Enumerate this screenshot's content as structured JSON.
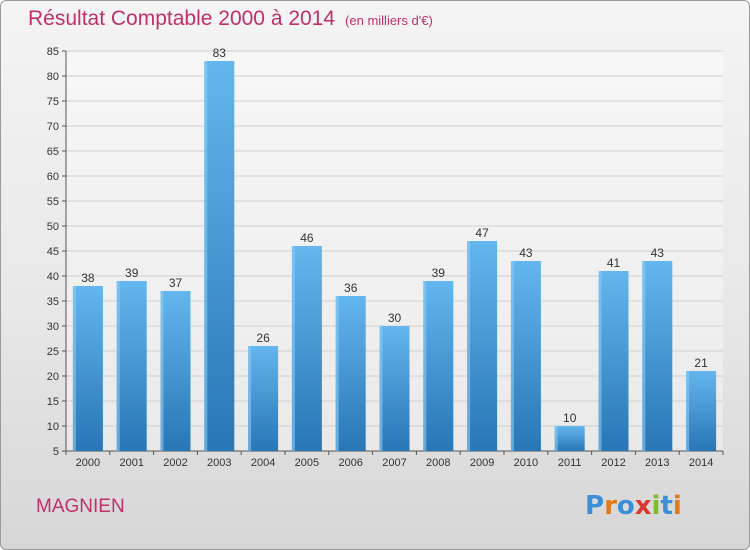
{
  "header": {
    "title": "Résultat Comptable 2000 à 2014",
    "unit": "(en milliers d'€)"
  },
  "footer": {
    "town": "MAGNIEN",
    "logo": "Proxiti"
  },
  "colors": {
    "title": "#c0306a",
    "bar_light": "#62b4ec",
    "bar_dark": "#2a78b8",
    "grid": "#d0d0d0",
    "logo_letters": [
      "#3a8fd6",
      "#e07a1e",
      "#3a8fd6",
      "#d8392f",
      "#7bbf2a",
      "#3a8fd6",
      "#e07a1e"
    ]
  },
  "chart_data": {
    "type": "bar",
    "title": "Résultat Comptable 2000 à 2014",
    "ylabel": "(en milliers d'€)",
    "xlabel": "",
    "categories": [
      "2000",
      "2001",
      "2002",
      "2003",
      "2004",
      "2005",
      "2006",
      "2007",
      "2008",
      "2009",
      "2010",
      "2011",
      "2012",
      "2013",
      "2014"
    ],
    "values": [
      38,
      39,
      37,
      83,
      26,
      46,
      36,
      30,
      39,
      47,
      43,
      10,
      41,
      43,
      21
    ],
    "ylim": [
      5,
      85
    ],
    "yticks": [
      5,
      10,
      15,
      20,
      25,
      30,
      35,
      40,
      45,
      50,
      55,
      60,
      65,
      70,
      75,
      80,
      85
    ],
    "grid": true,
    "legend": "none"
  }
}
